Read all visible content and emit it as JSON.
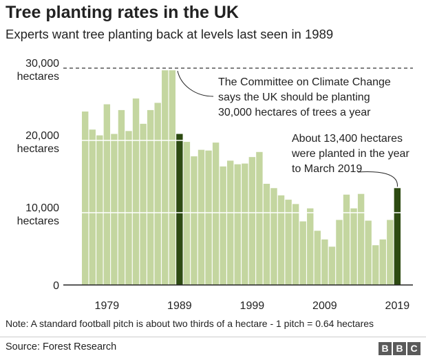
{
  "title": "Tree planting rates in the UK",
  "subtitle": "Experts want tree planting back at levels last seen in 1989",
  "note": "Note: A standard football pitch is about two thirds of a hectare - 1 pitch = 0.64 hectares",
  "source": "Source: Forest Research",
  "logo": [
    "B",
    "B",
    "C"
  ],
  "colors": {
    "bar": "#c4d6a0",
    "highlight": "#2d4a12",
    "gridline": "#ffffff",
    "axis": "#222222",
    "target_line": "#333333"
  },
  "chart_data": {
    "type": "bar",
    "x_first": 1976,
    "x_last": 2019,
    "y_ticks": [
      {
        "value": 30000,
        "number": "30,000",
        "unit": "hectares"
      },
      {
        "value": 20000,
        "number": "20,000",
        "unit": "hectares"
      },
      {
        "value": 10000,
        "number": "10,000",
        "unit": "hectares"
      },
      {
        "value": 0,
        "number": "0",
        "unit": ""
      }
    ],
    "x_ticks": [
      "1979",
      "1989",
      "1999",
      "2009",
      "2019"
    ],
    "ylim": [
      0,
      30000
    ],
    "grid": true,
    "highlighted_years": [
      1989,
      2019
    ],
    "series": [
      {
        "years": [
          1976,
          1977,
          1978,
          1979,
          1980,
          1981,
          1982,
          1983,
          1984,
          1985,
          1986,
          1987,
          1988,
          1989,
          1990,
          1991,
          1992,
          1993,
          1994,
          1995,
          1996,
          1997,
          1998,
          1999,
          2000,
          2001,
          2002,
          2003,
          2004,
          2005,
          2006,
          2007,
          2008,
          2009,
          2010,
          2011,
          2012,
          2013,
          2014,
          2015,
          2016,
          2017,
          2018,
          2019
        ],
        "values": [
          24000,
          21500,
          20700,
          25000,
          20900,
          24200,
          21300,
          25800,
          22300,
          24200,
          25200,
          29700,
          29700,
          20900,
          19800,
          17800,
          18700,
          18600,
          19700,
          16400,
          17200,
          16700,
          16800,
          17700,
          18400,
          14000,
          13400,
          12400,
          11800,
          11200,
          8800,
          10600,
          7500,
          6300,
          5300,
          9000,
          12500,
          10600,
          12600,
          8900,
          5500,
          6300,
          9000,
          13400
        ]
      }
    ],
    "annotations": [
      {
        "lines": [
          "The Committee on Climate Change",
          "says the UK should be planting",
          "30,000 hectares of trees a year"
        ]
      },
      {
        "lines": [
          "About 13,400 hectares",
          "were planted in the year",
          "to March 2019"
        ]
      }
    ]
  }
}
